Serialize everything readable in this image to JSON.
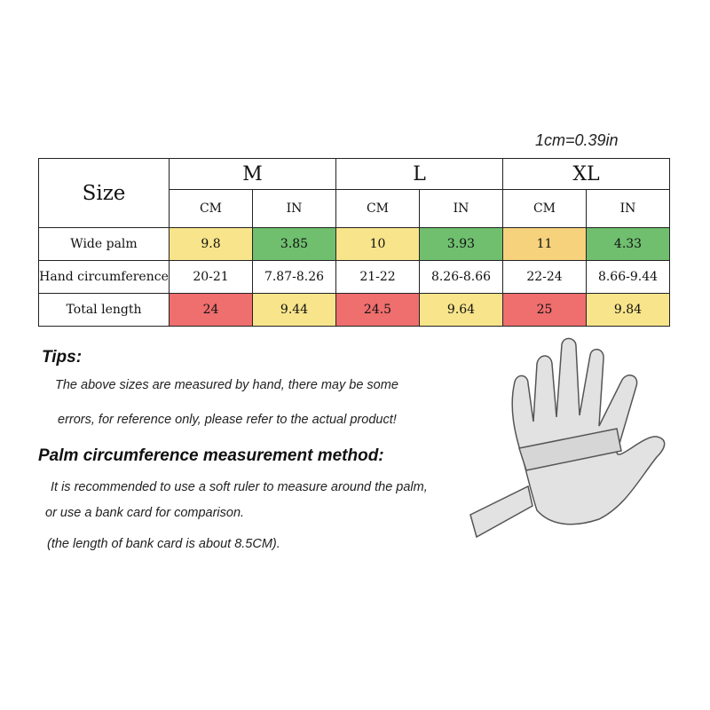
{
  "note": "1cm=0.39in",
  "table": {
    "size_label": "Size",
    "sizes": [
      "M",
      "L",
      "XL"
    ],
    "units": [
      "CM",
      "IN",
      "CM",
      "IN",
      "CM",
      "IN"
    ],
    "rows": [
      [
        "Wide palm",
        "9.8",
        "3.85",
        "10",
        "3.93",
        "11",
        "4.33"
      ],
      [
        "Hand circumference",
        "20-21",
        "7.87-8.26",
        "21-22",
        "8.26-8.66",
        "22-24",
        "8.66-9.44"
      ],
      [
        "Total length",
        "24",
        "9.44",
        "24.5",
        "9.64",
        "25",
        "9.84"
      ]
    ]
  },
  "tips": {
    "title": "Tips:",
    "lines": [
      "The above sizes are measured by hand, there may be some",
      "errors, for reference only, please refer to the actual product!"
    ]
  },
  "method": {
    "title": "Palm circumference measurement method:",
    "lines": [
      "It is recommended to use a soft ruler to  measure around  the palm,",
      "or use a bank card for comparison.",
      "(the length of bank card is about 8.5CM)."
    ]
  }
}
